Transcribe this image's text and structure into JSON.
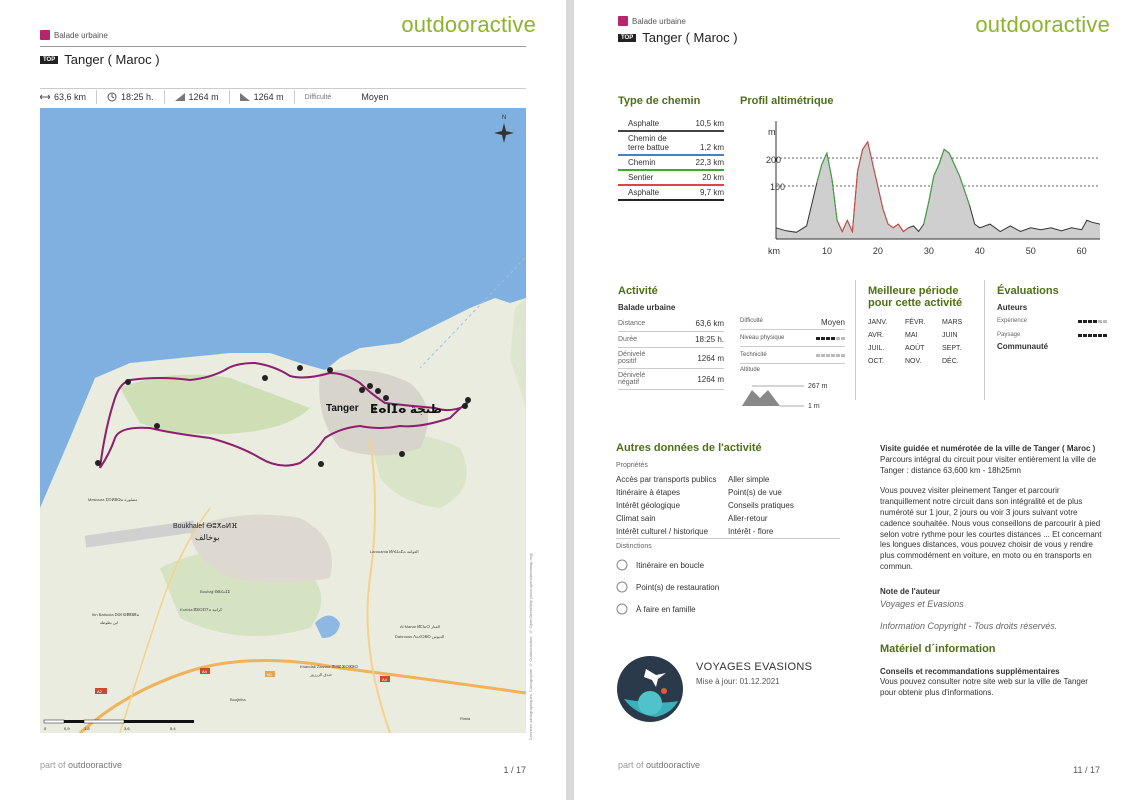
{
  "brand": "outdooractive",
  "footer": {
    "prefix": "part of",
    "brand": "outdooractive"
  },
  "page1": {
    "category": "Balade urbaine",
    "badge": "TOP",
    "title": "Tanger ( Maroc )",
    "stats": {
      "distance": "63,6 km",
      "duration": "18:25 h.",
      "ascent": "1264 m",
      "descent": "1264 m",
      "difficulty_label": "Difficulté",
      "difficulty_value": "Moyen"
    },
    "map": {
      "compass": "N",
      "city": "Tanger",
      "city_script": "ⵟⴰⵏⵊⴰ طنجة",
      "places": [
        "Boukhalef ⴱⵓⵅⴰⵍⴼ",
        "بوخالف",
        "Mesloura ⵎⵙⵍⵓⵕⴰ مصلورة",
        "Larouama ⵍⵄⵡⴰⵎⴰ العوامة",
        "Bouhaji ⴱⵓⵃⴰⵊⵉ",
        "Ibn Battouta ⵉⴱⵏ ⴱⵟⵟⵓⵟⴰ",
        "ابن بطوطة",
        "Korinia ⴽⵓⵔⵉⵏⵢⴰ كرانية",
        "Al Manar ⵍⵎⵏⴰⵔ المنار",
        "Dahrouss ⴷⴰⵃⵔⵓⵙ الديوس",
        "Khandak Zarzour ⵅⵏⴷⵇ ⵣⵔⵣⵓⵔ",
        "خندق الزرزور",
        "Boujbiha",
        "Rimla"
      ],
      "roads": [
        "A2",
        "A4",
        "A4",
        "N1"
      ],
      "scale": [
        "0",
        "0,9",
        "1,8",
        "3,6",
        "5,4"
      ],
      "credit": "Données cartographiques: Cartographie © Outdooractive; © OpenStreetMap (www.openstreetmap.org)"
    },
    "page_number": "1 / 17"
  },
  "page2": {
    "category": "Balade urbaine",
    "badge": "TOP",
    "title": "Tanger ( Maroc )",
    "path_types": {
      "title": "Type de chemin",
      "rows": [
        {
          "label": "Asphalte",
          "value": "10,5 km",
          "color": "#444444"
        },
        {
          "label": "Chemin de terre battue",
          "value": "1,2 km",
          "color": "#4a7fbf"
        },
        {
          "label": "Chemin",
          "value": "22,3 km",
          "color": "#3aa83a"
        },
        {
          "label": "Sentier",
          "value": "20 km",
          "color": "#d9473f"
        },
        {
          "label": "Asphalte",
          "value": "9,7 km",
          "color": "#222222"
        }
      ]
    },
    "profile": {
      "title": "Profil altimétrique",
      "y_unit": "m",
      "x_unit": "km",
      "y_ticks": [
        "200",
        "100"
      ],
      "x_ticks": [
        "10",
        "20",
        "30",
        "40",
        "50",
        "60"
      ]
    },
    "activity": {
      "title": "Activité",
      "type": "Balade urbaine",
      "rows": [
        {
          "label": "Distance",
          "value": "63,6  km"
        },
        {
          "label": "Durée",
          "value": "18:25  h."
        },
        {
          "label": "Dénivelé positif",
          "value": "1264  m"
        },
        {
          "label": "Dénivelé négatif",
          "value": "1264  m"
        }
      ],
      "difficulty_label": "Difficulté",
      "difficulty_value": "Moyen",
      "physical_label": "Niveau physique",
      "physical_level": 4,
      "technique_label": "Technicité",
      "technique_level": 0,
      "altitude_label": "Altitude",
      "alt_max": "267 m",
      "alt_min": "1 m"
    },
    "best_period": {
      "title": "Meilleure période pour cette activité",
      "months": [
        "JANV.",
        "FÉVR.",
        "MARS",
        "AVR.",
        "MAI",
        "JUIN",
        "JUIL.",
        "AOÛT",
        "SEPT.",
        "OCT.",
        "NOV.",
        "DÉC."
      ]
    },
    "ratings": {
      "title": "Évaluations",
      "authors": "Auteurs",
      "experience_label": "Expérience",
      "experience_level": 4,
      "landscape_label": "Paysage",
      "landscape_level": 6,
      "community": "Communauté"
    },
    "other": {
      "title": "Autres données de l'activité",
      "properties": "Propriétés",
      "items_left": [
        "Accès par transports publics",
        "Itinéraire à étapes",
        "Intérêt géologique",
        "Climat sain",
        "Intérêt culturel / historique"
      ],
      "items_right": [
        "Aller simple",
        "Point(s) de vue",
        "Conseils pratiques",
        "Aller-retour",
        "Intérêt - flore"
      ],
      "distinctions": "Distinctions",
      "distinction_items": [
        "Itinéraire en boucle",
        "Point(s) de restauration",
        "À faire en famille"
      ]
    },
    "author_card": {
      "name": "VOYAGES EVASIONS",
      "update": "Mise à jour: 01.12.2021"
    },
    "description": {
      "title": "Visite guidée et numérotée de la ville de Tanger ( Maroc )",
      "p1": "Parcours intégral du circuit pour visiter entièrement la ville de Tanger : distance 63,600 km - 18h25mn",
      "p2": "Vous pouvez visiter pleinement Tanger et parcourir tranquillement notre circuit dans son intégralité et de plus numéroté sur 1 jour, 2 jours ou voir 3 jours suivant votre cadence souhaitée. Nous vous conseillons de parcourir à pied selon votre rythme pour les courtes distances ... Et concernant les longues distances, vous pouvez choisir de vous y rendre plus commodément en voiture, en moto ou en transports en commun.",
      "author_note_title": "Note de l'auteur",
      "author_note": "Voyages et Evasions",
      "copyright": "Information Copyright - Tous droits réservés.",
      "material_title": "Matériel d´information",
      "advice_title": "Conseils et recommandations supplémentaires",
      "advice": "Vous pouvez consulter notre site web sur la ville de Tanger pour obtenir plus d'informations."
    },
    "page_number": "11 / 17"
  },
  "colors": {
    "brand": "#8cb42a",
    "section": "#4e6f18",
    "route": "#8e1f6e",
    "sea": "#7fb0e0",
    "land": "#e9ecde"
  }
}
